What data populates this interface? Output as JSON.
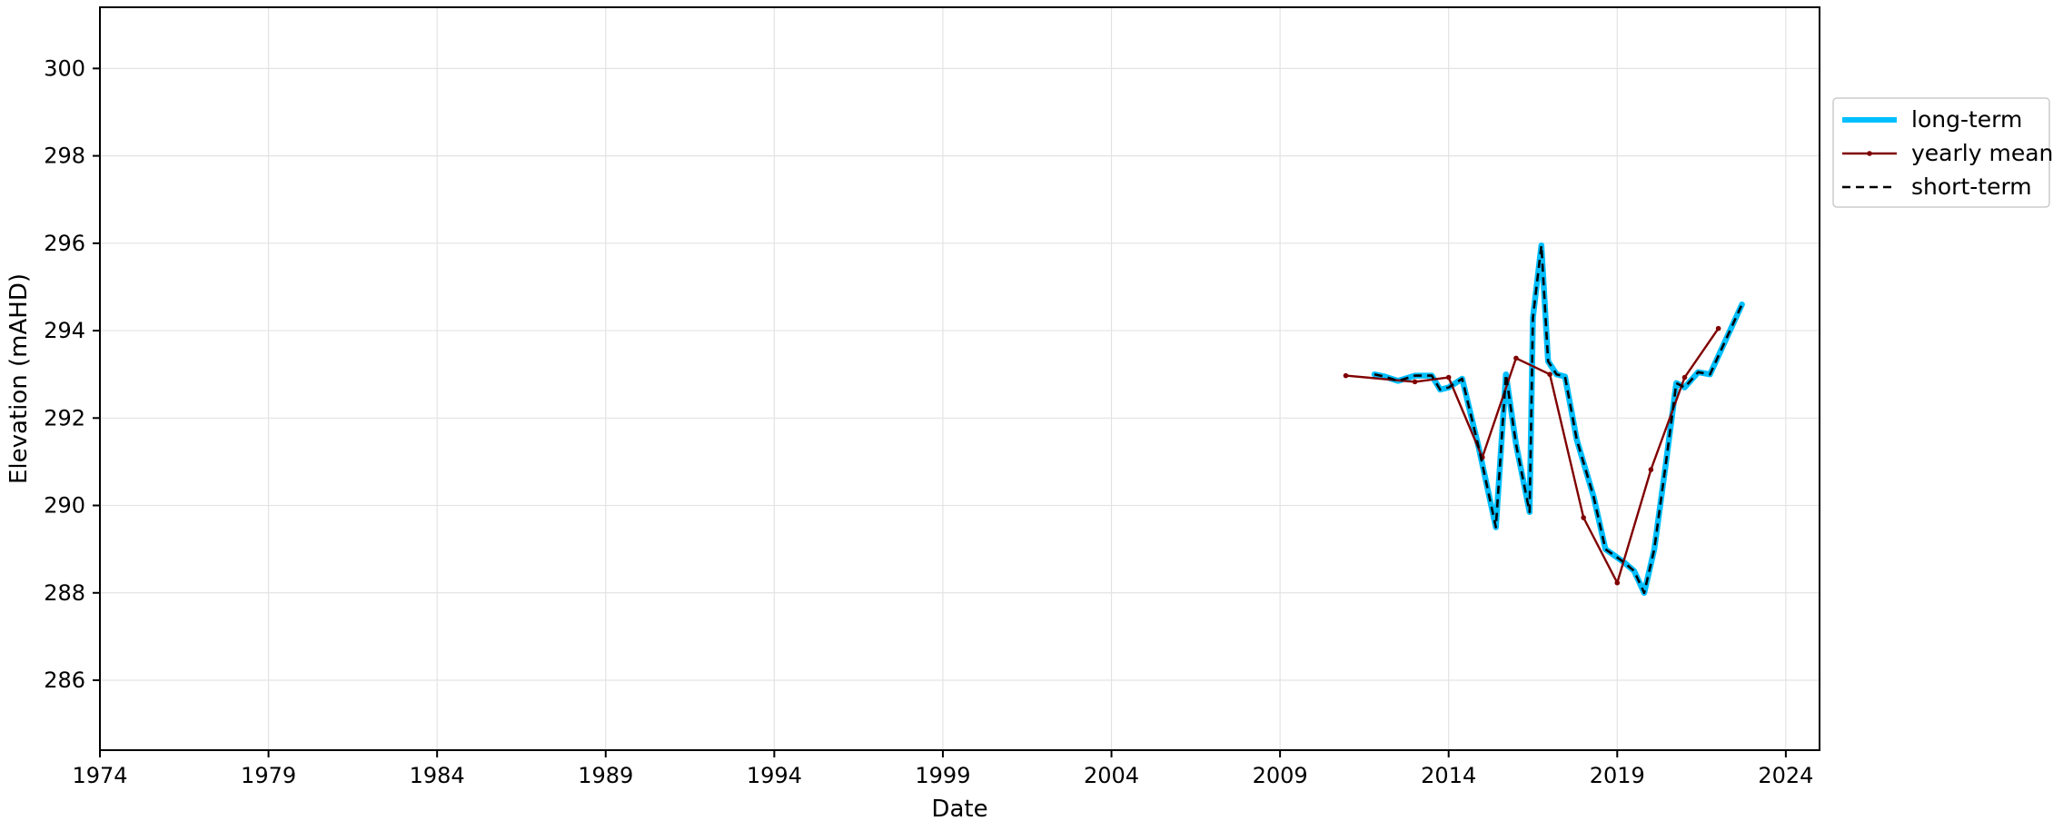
{
  "chart_data": {
    "type": "line",
    "xlabel": "Date",
    "ylabel": "Elevation (mAHD)",
    "xlim": [
      1974.0,
      2025.0
    ],
    "ylim": [
      284.4,
      301.4
    ],
    "x_ticks": [
      1974,
      1979,
      1984,
      1989,
      1994,
      1999,
      2004,
      2009,
      2014,
      2019,
      2024
    ],
    "x_tick_labels": [
      "1974",
      "1979",
      "1984",
      "1989",
      "1994",
      "1999",
      "2004",
      "2009",
      "2014",
      "2019",
      "2024"
    ],
    "y_ticks": [
      286,
      288,
      290,
      292,
      294,
      296,
      298,
      300
    ],
    "y_tick_labels": [
      "286",
      "288",
      "290",
      "292",
      "294",
      "296",
      "298",
      "300"
    ],
    "grid": true,
    "legend_position": "outside-right-top",
    "colors": {
      "long_term": "#00bfff",
      "yearly_mean": "#800000",
      "short_term": "#000000"
    },
    "series": [
      {
        "name": "long-term",
        "style": "solid-thick",
        "x": [
          2011.8,
          2012.1,
          2012.5,
          2013.0,
          2013.5,
          2013.75,
          2014.0,
          2014.4,
          2014.9,
          2015.4,
          2015.7,
          2016.0,
          2016.4,
          2016.5,
          2016.75,
          2016.95,
          2017.2,
          2017.45,
          2017.8,
          2018.3,
          2018.65,
          2019.2,
          2019.5,
          2019.8,
          2020.1,
          2020.45,
          2020.75,
          2021.0,
          2021.4,
          2021.75,
          2022.7
        ],
        "y": [
          293.0,
          292.95,
          292.85,
          292.97,
          292.97,
          292.65,
          292.7,
          292.9,
          291.3,
          289.5,
          293.0,
          291.4,
          289.85,
          294.3,
          295.95,
          293.3,
          293.0,
          292.95,
          291.5,
          290.2,
          289.0,
          288.7,
          288.5,
          288.0,
          289.0,
          291.0,
          292.8,
          292.7,
          293.05,
          293.0,
          294.6
        ]
      },
      {
        "name": "yearly mean",
        "style": "line-with-points",
        "x": [
          2010.95,
          2013.0,
          2014.0,
          2015.0,
          2016.0,
          2017.0,
          2018.0,
          2019.0,
          2020.0,
          2021.0,
          2022.0
        ],
        "y": [
          292.97,
          292.83,
          292.93,
          291.1,
          293.37,
          293.0,
          289.72,
          288.23,
          290.82,
          292.93,
          294.05
        ]
      },
      {
        "name": "short-term",
        "style": "dashed",
        "x": [
          2011.8,
          2012.1,
          2012.5,
          2013.0,
          2013.5,
          2013.75,
          2014.0,
          2014.4,
          2014.9,
          2015.4,
          2015.7,
          2016.0,
          2016.4,
          2016.5,
          2016.75,
          2016.95,
          2017.2,
          2017.45,
          2017.8,
          2018.3,
          2018.65,
          2019.2,
          2019.5,
          2019.8,
          2020.1,
          2020.45,
          2020.75,
          2021.0,
          2021.4,
          2021.75,
          2022.7
        ],
        "y": [
          293.0,
          292.95,
          292.85,
          292.97,
          292.97,
          292.65,
          292.7,
          292.9,
          291.3,
          289.5,
          293.0,
          291.4,
          289.85,
          294.3,
          295.95,
          293.3,
          293.0,
          292.95,
          291.5,
          290.2,
          289.0,
          288.7,
          288.5,
          288.0,
          289.0,
          291.0,
          292.8,
          292.7,
          293.05,
          293.0,
          294.6
        ]
      }
    ]
  }
}
